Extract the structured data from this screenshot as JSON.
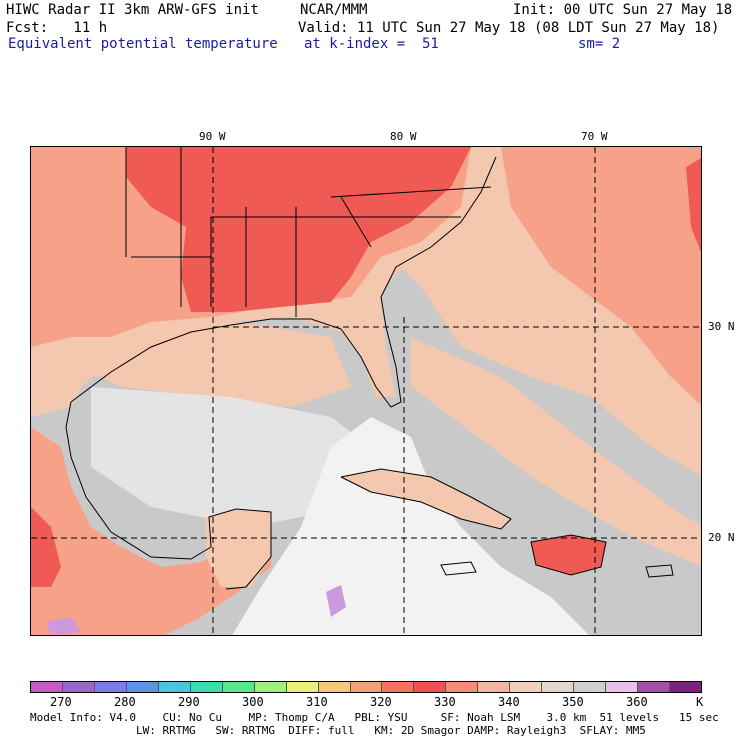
{
  "header": {
    "line1_left": "HIWC Radar II 3km ARW-GFS init",
    "line1_mid": "NCAR/MMM",
    "line1_right": "Init: 00 UTC Sun 27 May 18",
    "line2_left": "Fcst:   11 h",
    "line2_right": "Valid: 11 UTC Sun 27 May 18 (08 LDT Sun 27 May 18)",
    "line3_left": "Equivalent potential temperature",
    "line3_mid": "at k-index =  51",
    "line3_right": "sm= 2"
  },
  "map": {
    "lon_labels": [
      "90 W",
      "80 W",
      "70 W"
    ],
    "lat_labels": [
      "30 N",
      "20 N"
    ],
    "colors": {
      "hot": "#ef5a55",
      "warm": "#f7a288",
      "tan": "#f3c8ae",
      "gray": "#c9c9c9",
      "light": "#e4e4e4",
      "white": "#f2f2f2",
      "lavender": "#cc99dd",
      "coast": "#000000"
    }
  },
  "colorbar": {
    "colors": [
      "#c85ac8",
      "#9966cc",
      "#7c7ce6",
      "#5a96e6",
      "#4cc3e6",
      "#3ddcb0",
      "#5ae68c",
      "#9ef07a",
      "#e6f07a",
      "#f5c878",
      "#f7a070",
      "#f7745a",
      "#ef5050",
      "#f58c78",
      "#f7b4a0",
      "#f2d0bc",
      "#e0d8d0",
      "#cfcfcf",
      "#e8c0e8",
      "#a84ca8",
      "#80207e"
    ],
    "labels": [
      "270",
      "280",
      "290",
      "300",
      "310",
      "320",
      "330",
      "340",
      "350",
      "360",
      "K"
    ]
  },
  "footer": {
    "line1": "Model Info: V4.0    CU: No Cu    MP: Thomp C/A   PBL: YSU     SF: Noah LSM    3.0 km  51 levels   15 sec",
    "line2": "                LW: RRTMG   SW: RRTMG  DIFF: full   KM: 2D Smagor DAMP: Rayleigh3  SFLAY: MM5"
  }
}
